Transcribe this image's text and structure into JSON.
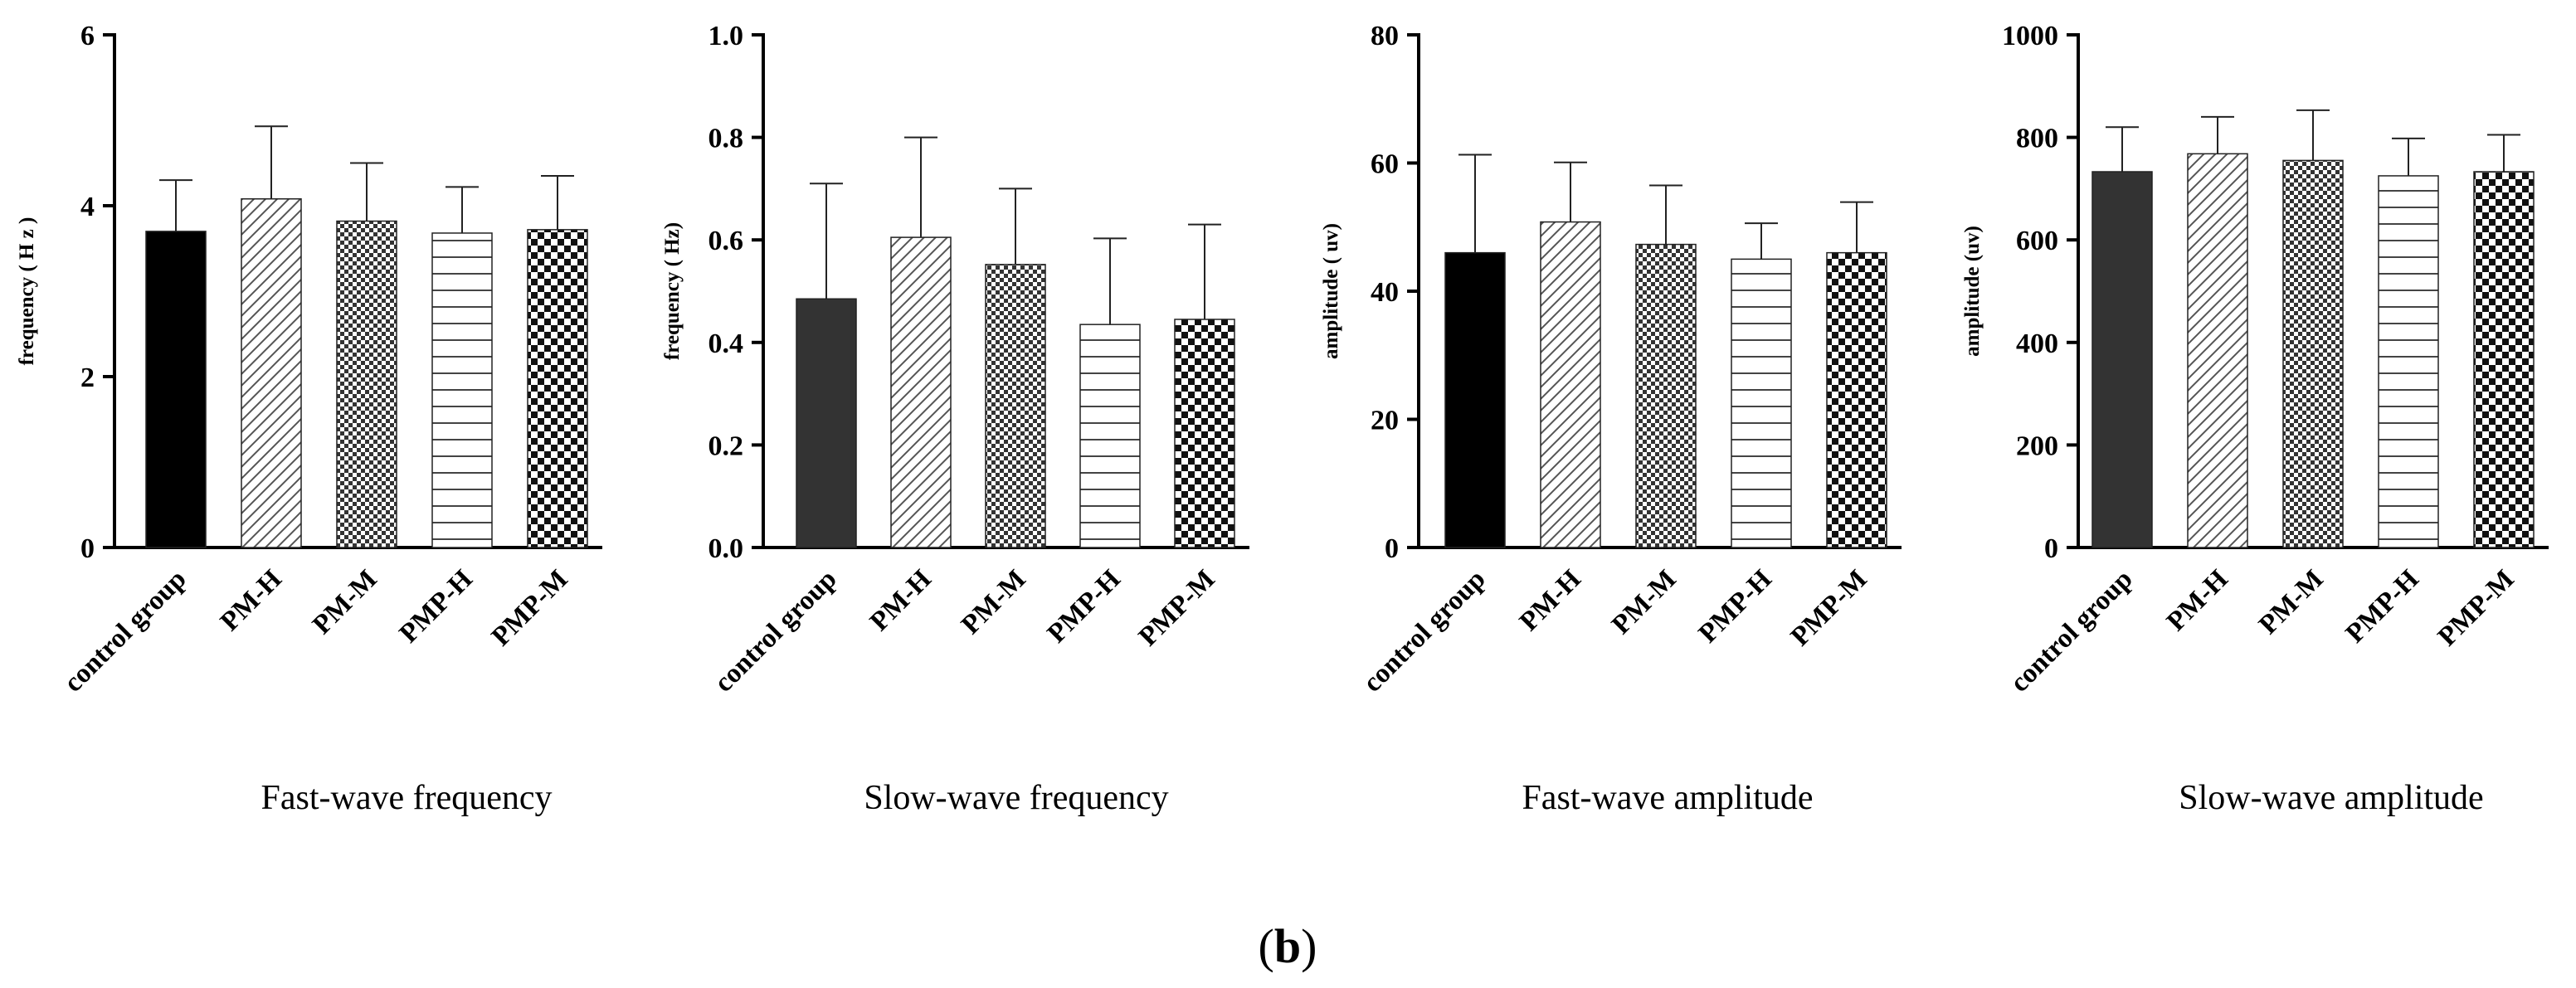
{
  "figure_label": {
    "open": "(",
    "letter": "b",
    "close": ")"
  },
  "chart_data": [
    {
      "type": "bar",
      "title": "Fast-wave frequency",
      "xlabel": "",
      "ylabel": "frequency ( H z )",
      "ylim": [
        0,
        6
      ],
      "yticks": [
        "0",
        "2",
        "4",
        "6"
      ],
      "categories": [
        "control group",
        "PM-H",
        "PM-M",
        "PMP-H",
        "PMP-M"
      ],
      "values": [
        3.7,
        4.08,
        3.82,
        3.68,
        3.72
      ],
      "errors": [
        0.6,
        0.85,
        0.68,
        0.54,
        0.63
      ],
      "error_bars": "upper, SD"
    },
    {
      "type": "bar",
      "title": "Slow-wave frequency",
      "xlabel": "",
      "ylabel": "frequency ( Hz)",
      "ylim": [
        0,
        1.0
      ],
      "yticks": [
        "0.0",
        "0.2",
        "0.4",
        "0.6",
        "0.8",
        "1.0"
      ],
      "categories": [
        "control group",
        "PM-H",
        "PM-M",
        "PMP-H",
        "PMP-M"
      ],
      "values": [
        0.485,
        0.605,
        0.552,
        0.435,
        0.445
      ],
      "errors": [
        0.225,
        0.195,
        0.148,
        0.168,
        0.185
      ],
      "error_bars": "upper, SD"
    },
    {
      "type": "bar",
      "title": "Fast-wave amplitude",
      "xlabel": "",
      "ylabel": "amplitude ( uv)",
      "ylim": [
        0,
        80
      ],
      "yticks": [
        "0",
        "20",
        "40",
        "60",
        "80"
      ],
      "categories": [
        "control group",
        "PM-H",
        "PM-M",
        "PMP-H",
        "PMP-M"
      ],
      "values": [
        46,
        50.8,
        47.3,
        45,
        46
      ],
      "errors": [
        15.3,
        9.3,
        9.2,
        5.6,
        7.9
      ],
      "error_bars": "upper, SD"
    },
    {
      "type": "bar",
      "title": "Slow-wave amplitude",
      "xlabel": "",
      "ylabel": "amplitude (uv)",
      "ylim": [
        0,
        1000
      ],
      "yticks": [
        "0",
        "200",
        "400",
        "600",
        "800",
        "1000"
      ],
      "categories": [
        "control group",
        "PM-H",
        "PM-M",
        "PMP-H",
        "PMP-M"
      ],
      "values": [
        733,
        768,
        755,
        725,
        733
      ],
      "errors": [
        87,
        72,
        98,
        73,
        72
      ],
      "error_bars": "upper, SD"
    }
  ],
  "style": {
    "series_patterns": [
      "solid",
      "diagonal",
      "checker-fine",
      "horizontal",
      "checker-coarse"
    ],
    "control_fill_colors": [
      "#000000",
      "#333333",
      "#000000",
      "#333333"
    ],
    "axis_color": "#000000",
    "hatch_color": "#444444"
  }
}
